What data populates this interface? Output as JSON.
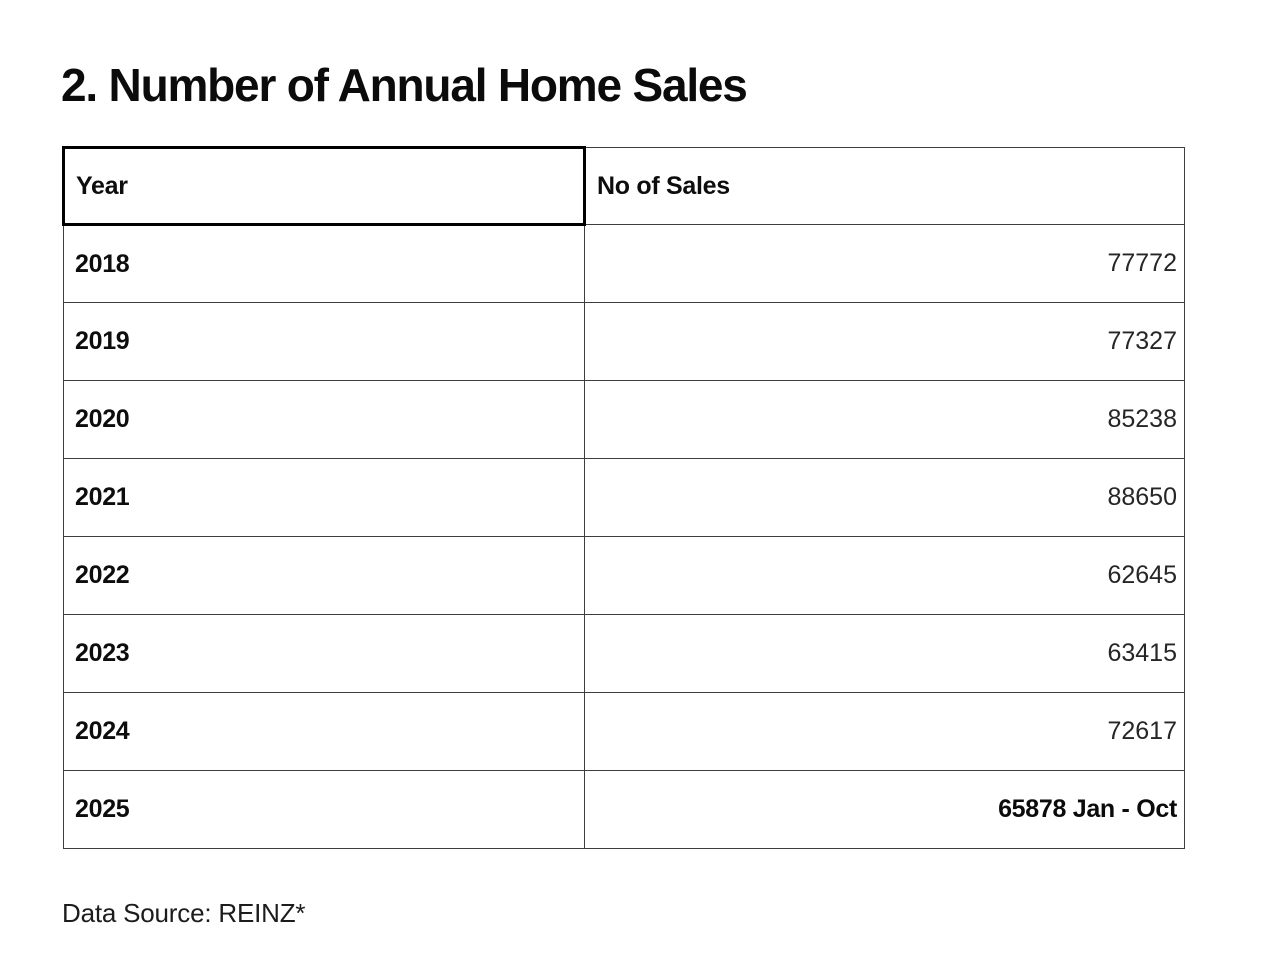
{
  "title": "2. Number of Annual Home Sales",
  "source_note": "Data Source: REINZ*",
  "table": {
    "headers": [
      "Year",
      "No of Sales"
    ],
    "rows": [
      {
        "year": "2018",
        "sales": "77772"
      },
      {
        "year": "2019",
        "sales": "77327"
      },
      {
        "year": "2020",
        "sales": "85238"
      },
      {
        "year": "2021",
        "sales": "88650"
      },
      {
        "year": "2022",
        "sales": "62645"
      },
      {
        "year": "2023",
        "sales": "63415"
      },
      {
        "year": "2024",
        "sales": "72617"
      },
      {
        "year": "2025",
        "sales": "65878 Jan - Oct"
      }
    ]
  },
  "chart_data": {
    "type": "table",
    "title": "2. Number of Annual Home Sales",
    "columns": [
      "Year",
      "No of Sales"
    ],
    "rows": [
      [
        "2018",
        77772
      ],
      [
        "2019",
        77327
      ],
      [
        "2020",
        85238
      ],
      [
        "2021",
        88650
      ],
      [
        "2022",
        62645
      ],
      [
        "2023",
        63415
      ],
      [
        "2024",
        72617
      ],
      [
        "2025",
        65878
      ]
    ],
    "annotations": [
      "2025 figure covers Jan - Oct"
    ],
    "source": "Data Source: REINZ*"
  }
}
